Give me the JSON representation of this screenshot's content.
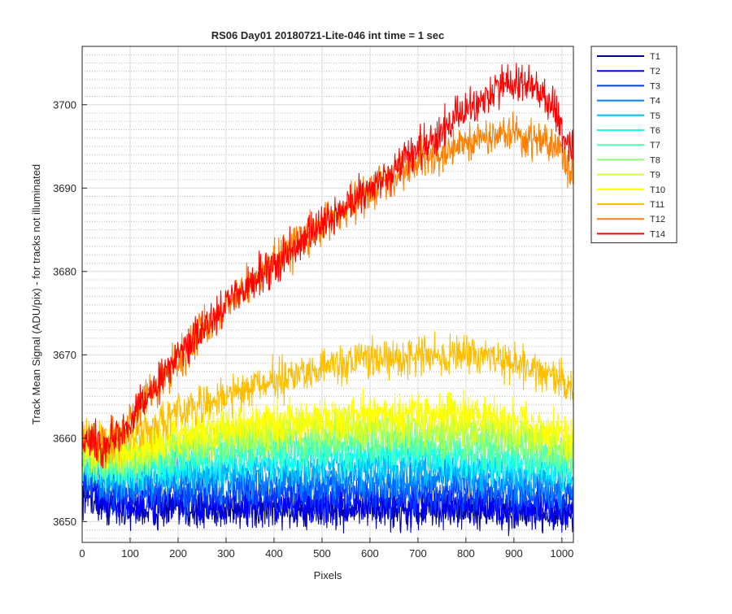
{
  "chart_data": {
    "type": "line",
    "title": "RS06 Day01 20180721-Lite-046 int time = 1 sec",
    "xlabel": "Pixels",
    "ylabel": "Track Mean Signal (ADU/pix) - for tracks not illuminated",
    "xlim": [
      0,
      1024
    ],
    "ylim": [
      3647.5,
      3707
    ],
    "xticks": [
      "0",
      "100",
      "200",
      "300",
      "400",
      "500",
      "600",
      "700",
      "800",
      "900",
      "1000"
    ],
    "yticks": [
      "3650",
      "3660",
      "3670",
      "3680",
      "3690",
      "3700"
    ],
    "grid": true,
    "minor_grid": true,
    "legend_position": "outside-right",
    "series": [
      {
        "name": "T1",
        "color": "#000090",
        "noise": 1.8,
        "x": [
          0,
          50,
          100,
          200,
          300,
          400,
          500,
          600,
          700,
          800,
          900,
          1000,
          1024
        ],
        "y": [
          3653.5,
          3652.0,
          3651.5,
          3651.5,
          3651.5,
          3651.5,
          3651.5,
          3651.5,
          3651.5,
          3651.5,
          3651.0,
          3651.0,
          3651.0
        ]
      },
      {
        "name": "T2",
        "color": "#0000ff",
        "noise": 1.8,
        "x": [
          0,
          50,
          100,
          200,
          300,
          400,
          500,
          600,
          700,
          800,
          900,
          1000,
          1024
        ],
        "y": [
          3654.5,
          3652.5,
          3652.0,
          3652.0,
          3652.0,
          3652.0,
          3652.0,
          3652.0,
          3652.0,
          3652.0,
          3651.5,
          3651.5,
          3651.5
        ]
      },
      {
        "name": "T3",
        "color": "#0040ff",
        "noise": 1.8,
        "x": [
          0,
          50,
          100,
          200,
          300,
          400,
          500,
          600,
          700,
          800,
          900,
          1000,
          1024
        ],
        "y": [
          3655.0,
          3653.5,
          3653.5,
          3653.5,
          3653.5,
          3653.5,
          3653.5,
          3653.5,
          3653.5,
          3653.5,
          3653.0,
          3653.0,
          3652.5
        ]
      },
      {
        "name": "T4",
        "color": "#0080ff",
        "noise": 1.8,
        "x": [
          0,
          50,
          100,
          200,
          300,
          400,
          500,
          600,
          700,
          800,
          900,
          1000,
          1024
        ],
        "y": [
          3656.0,
          3654.5,
          3654.5,
          3655.0,
          3655.0,
          3655.0,
          3655.0,
          3655.0,
          3655.0,
          3655.0,
          3654.5,
          3654.0,
          3654.0
        ]
      },
      {
        "name": "T5",
        "color": "#00c0ff",
        "noise": 1.8,
        "x": [
          0,
          50,
          100,
          200,
          300,
          400,
          500,
          600,
          700,
          800,
          900,
          1000,
          1024
        ],
        "y": [
          3657.0,
          3655.5,
          3655.5,
          3656.0,
          3656.0,
          3656.5,
          3656.5,
          3656.5,
          3656.5,
          3656.5,
          3656.0,
          3655.5,
          3655.0
        ]
      },
      {
        "name": "T6",
        "color": "#10ffef",
        "noise": 1.8,
        "x": [
          0,
          50,
          100,
          200,
          300,
          400,
          500,
          600,
          700,
          800,
          900,
          1000,
          1024
        ],
        "y": [
          3657.5,
          3656.0,
          3656.5,
          3657.0,
          3657.5,
          3657.5,
          3658.0,
          3658.0,
          3658.0,
          3657.5,
          3657.0,
          3656.5,
          3656.0
        ]
      },
      {
        "name": "T7",
        "color": "#50ffaf",
        "noise": 1.8,
        "x": [
          0,
          50,
          100,
          200,
          300,
          400,
          500,
          600,
          700,
          800,
          900,
          1000,
          1024
        ],
        "y": [
          3658.0,
          3656.5,
          3657.0,
          3658.0,
          3658.5,
          3659.0,
          3659.0,
          3659.0,
          3659.0,
          3659.0,
          3658.5,
          3657.5,
          3657.0
        ]
      },
      {
        "name": "T8",
        "color": "#8fff70",
        "noise": 1.8,
        "x": [
          0,
          50,
          100,
          200,
          300,
          400,
          500,
          600,
          700,
          800,
          900,
          1000,
          1024
        ],
        "y": [
          3658.5,
          3657.0,
          3657.5,
          3659.0,
          3659.5,
          3660.0,
          3660.5,
          3660.5,
          3660.5,
          3660.5,
          3660.0,
          3658.5,
          3658.0
        ]
      },
      {
        "name": "T9",
        "color": "#cfff30",
        "noise": 1.8,
        "x": [
          0,
          50,
          100,
          200,
          300,
          400,
          500,
          600,
          700,
          800,
          900,
          1000,
          1024
        ],
        "y": [
          3659.0,
          3657.5,
          3658.0,
          3659.5,
          3660.5,
          3661.0,
          3661.5,
          3661.5,
          3661.5,
          3661.5,
          3661.0,
          3659.5,
          3659.0
        ]
      },
      {
        "name": "T10",
        "color": "#ffff00",
        "noise": 1.8,
        "x": [
          0,
          50,
          100,
          200,
          300,
          400,
          500,
          600,
          700,
          800,
          900,
          1000,
          1024
        ],
        "y": [
          3659.5,
          3658.0,
          3658.5,
          3660.5,
          3661.5,
          3662.0,
          3662.5,
          3663.0,
          3663.0,
          3663.0,
          3662.5,
          3660.5,
          3660.0
        ]
      },
      {
        "name": "T11",
        "color": "#ffbf00",
        "noise": 1.8,
        "x": [
          0,
          50,
          100,
          150,
          200,
          300,
          400,
          500,
          600,
          700,
          800,
          900,
          1000,
          1024
        ],
        "y": [
          3660.5,
          3659.0,
          3660.0,
          3661.5,
          3663.0,
          3665.0,
          3667.0,
          3668.5,
          3669.5,
          3670.0,
          3670.0,
          3669.0,
          3667.0,
          3666.0
        ]
      },
      {
        "name": "T12",
        "color": "#ff8000",
        "noise": 1.8,
        "x": [
          0,
          50,
          100,
          200,
          300,
          400,
          500,
          600,
          700,
          800,
          850,
          900,
          950,
          1000,
          1024
        ],
        "y": [
          3660.0,
          3659.0,
          3662.0,
          3669.5,
          3676.0,
          3681.0,
          3685.5,
          3689.5,
          3693.0,
          3695.5,
          3696.5,
          3696.5,
          3696.0,
          3694.0,
          3691.5
        ]
      },
      {
        "name": "T14",
        "color": "#ff0000",
        "noise": 1.8,
        "x": [
          0,
          50,
          100,
          200,
          300,
          400,
          500,
          600,
          700,
          800,
          850,
          900,
          950,
          980,
          1024
        ],
        "y": [
          3660.0,
          3659.0,
          3662.0,
          3670.0,
          3676.0,
          3681.0,
          3685.5,
          3690.0,
          3694.5,
          3699.0,
          3701.5,
          3703.0,
          3702.0,
          3700.0,
          3694.0
        ]
      }
    ]
  }
}
